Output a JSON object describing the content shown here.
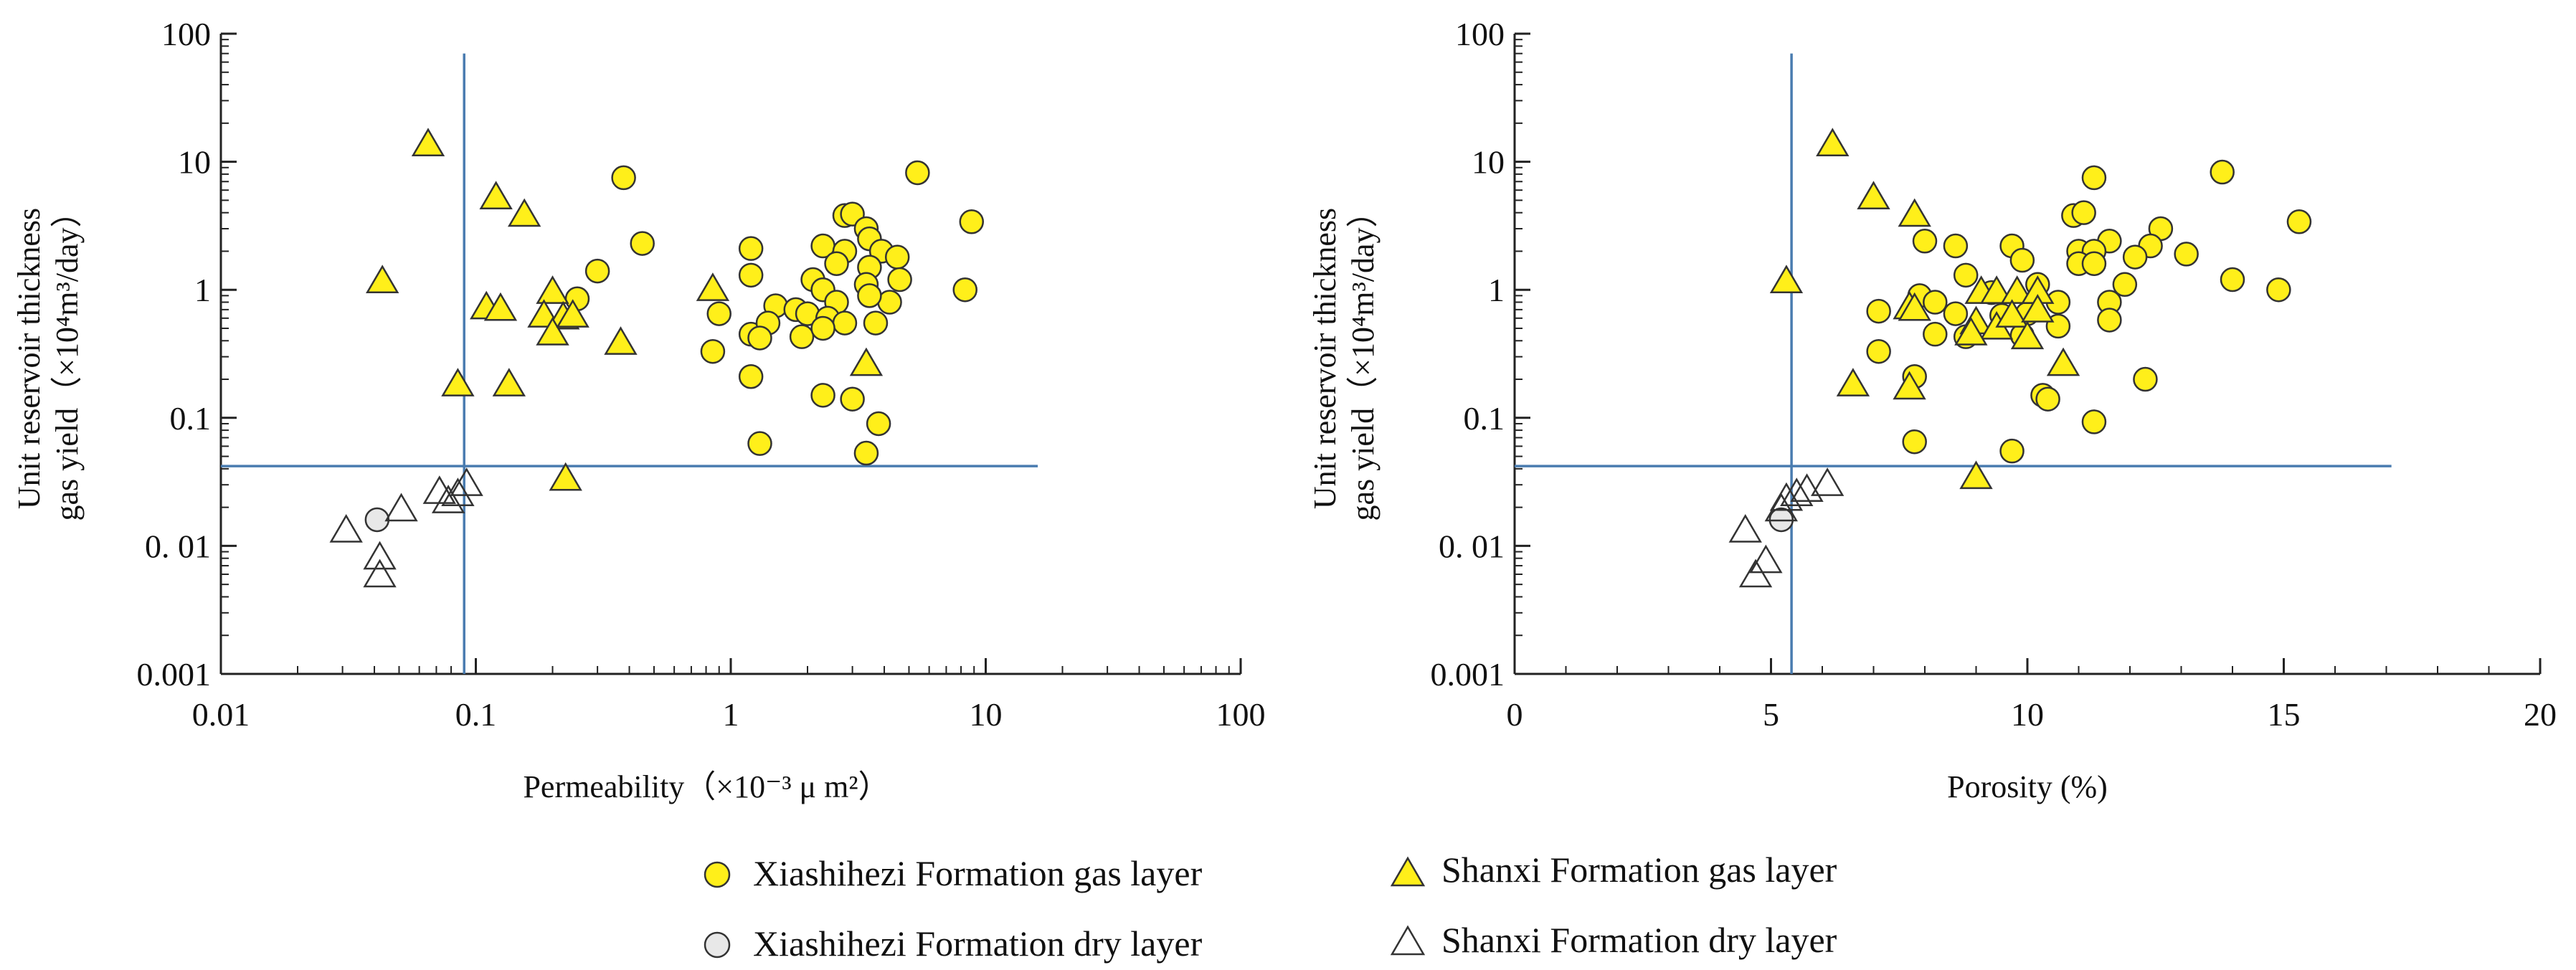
{
  "colors": {
    "gas_fill": "#FFEF1A",
    "dry_fill": "#E8E8E8",
    "marker_stroke": "#333333",
    "cutoff_line": "#4A7CB0",
    "axis": "#222222"
  },
  "legend": {
    "xsz_gas": "Xiashihezi Formation gas layer",
    "sx_gas": "Shanxi Formation gas layer",
    "xsz_dry": "Xiashihezi Formation dry layer",
    "sx_dry": "Shanxi Formation dry layer"
  },
  "chart_data": [
    {
      "type": "scatter",
      "id": "left",
      "xscale": "log",
      "yscale": "log",
      "xlim": [
        0.01,
        100
      ],
      "ylim": [
        0.001,
        100
      ],
      "xticks": [
        "0.01",
        "0.1",
        "1",
        "10",
        "100"
      ],
      "yticks": [
        "0.001",
        "0. 01",
        "0.1",
        "1",
        "10",
        "100"
      ],
      "xlabel": "Permeability（×10⁻³ μ m²）",
      "ylabel_line1": "Unit reservoir thickness",
      "ylabel_line2": "gas yield（×10⁴m³/day）",
      "cutoff_x": 0.09,
      "cutoff_y": 0.042,
      "cutoff_x_ymax": 70,
      "cutoff_y_xmax": 16,
      "series": [
        {
          "name": "Xiashihezi Formation gas layer",
          "marker": "circle",
          "fill": "gas",
          "points": [
            [
              0.38,
              7.5
            ],
            [
              0.45,
              2.3
            ],
            [
              0.3,
              1.4
            ],
            [
              0.25,
              0.85
            ],
            [
              5.4,
              8.2
            ],
            [
              8.8,
              3.4
            ],
            [
              8.3,
              1.0
            ],
            [
              2.8,
              3.8
            ],
            [
              3.0,
              3.9
            ],
            [
              3.4,
              3.0
            ],
            [
              3.5,
              2.5
            ],
            [
              2.3,
              2.2
            ],
            [
              2.8,
              2.0
            ],
            [
              3.9,
              2.0
            ],
            [
              4.5,
              1.8
            ],
            [
              2.6,
              1.6
            ],
            [
              3.5,
              1.5
            ],
            [
              2.1,
              1.2
            ],
            [
              4.6,
              1.2
            ],
            [
              3.4,
              1.1
            ],
            [
              2.3,
              1.0
            ],
            [
              2.6,
              0.8
            ],
            [
              4.2,
              0.8
            ],
            [
              3.5,
              0.9
            ],
            [
              1.5,
              0.75
            ],
            [
              1.8,
              0.7
            ],
            [
              2.0,
              0.65
            ],
            [
              2.4,
              0.6
            ],
            [
              2.8,
              0.55
            ],
            [
              3.7,
              0.55
            ],
            [
              1.2,
              2.1
            ],
            [
              1.2,
              1.3
            ],
            [
              1.2,
              0.45
            ],
            [
              0.9,
              0.65
            ],
            [
              1.4,
              0.55
            ],
            [
              1.9,
              0.43
            ],
            [
              2.3,
              0.5
            ],
            [
              1.3,
              0.42
            ],
            [
              0.85,
              0.33
            ],
            [
              1.2,
              0.21
            ],
            [
              2.3,
              0.15
            ],
            [
              3.0,
              0.14
            ],
            [
              3.8,
              0.09
            ],
            [
              1.3,
              0.063
            ],
            [
              3.4,
              0.053
            ]
          ]
        },
        {
          "name": "Shanxi Formation gas layer",
          "marker": "triangle",
          "fill": "gas",
          "points": [
            [
              0.065,
              13.5
            ],
            [
              0.043,
              1.15
            ],
            [
              0.12,
              5.2
            ],
            [
              0.155,
              3.8
            ],
            [
              0.11,
              0.72
            ],
            [
              0.125,
              0.7
            ],
            [
              0.2,
              0.95
            ],
            [
              0.185,
              0.62
            ],
            [
              0.22,
              0.6
            ],
            [
              0.2,
              0.45
            ],
            [
              0.24,
              0.62
            ],
            [
              0.37,
              0.38
            ],
            [
              0.085,
              0.18
            ],
            [
              0.135,
              0.18
            ],
            [
              0.225,
              0.033
            ],
            [
              0.85,
              1.0
            ],
            [
              3.4,
              0.26
            ]
          ]
        },
        {
          "name": "Xiashihezi Formation dry layer",
          "marker": "circle",
          "fill": "dry",
          "points": [
            [
              0.041,
              0.016
            ]
          ]
        },
        {
          "name": "Shanxi Formation dry layer",
          "marker": "triangle",
          "fill": "dry",
          "points": [
            [
              0.031,
              0.013
            ],
            [
              0.051,
              0.019
            ],
            [
              0.042,
              0.008
            ],
            [
              0.042,
              0.0058
            ],
            [
              0.072,
              0.026
            ],
            [
              0.078,
              0.022
            ],
            [
              0.085,
              0.025
            ],
            [
              0.092,
              0.03
            ]
          ]
        }
      ]
    },
    {
      "type": "scatter",
      "id": "right",
      "xscale": "linear",
      "yscale": "log",
      "xlim": [
        0,
        20
      ],
      "ylim": [
        0.001,
        100
      ],
      "xticks": [
        "0",
        "5",
        "10",
        "15",
        "20"
      ],
      "yticks": [
        "0.001",
        "0. 01",
        "0.1",
        "1",
        "10",
        "100"
      ],
      "xlabel": "Porosity (%)",
      "ylabel_line1": "Unit reservoir thickness",
      "ylabel_line2": "gas yield（×10⁴m³/day）",
      "cutoff_x": 5.4,
      "cutoff_y": 0.042,
      "cutoff_x_ymax": 70,
      "cutoff_y_xmax": 17.1,
      "series": [
        {
          "name": "Xiashihezi Formation gas layer",
          "marker": "circle",
          "fill": "gas",
          "points": [
            [
              11.3,
              7.5
            ],
            [
              13.8,
              8.3
            ],
            [
              15.3,
              3.4
            ],
            [
              14.9,
              1.0
            ],
            [
              13.1,
              1.9
            ],
            [
              14.0,
              1.2
            ],
            [
              10.9,
              3.8
            ],
            [
              11.1,
              4.0
            ],
            [
              12.6,
              3.0
            ],
            [
              11.6,
              2.4
            ],
            [
              9.7,
              2.2
            ],
            [
              11.0,
              2.0
            ],
            [
              11.3,
              2.0
            ],
            [
              12.4,
              2.2
            ],
            [
              12.1,
              1.8
            ],
            [
              9.9,
              1.7
            ],
            [
              11.0,
              1.6
            ],
            [
              11.3,
              1.6
            ],
            [
              11.9,
              1.1
            ],
            [
              11.6,
              0.8
            ],
            [
              8.0,
              2.4
            ],
            [
              8.6,
              2.2
            ],
            [
              8.8,
              1.3
            ],
            [
              9.3,
              0.95
            ],
            [
              10.2,
              1.1
            ],
            [
              10.6,
              0.8
            ],
            [
              7.1,
              0.68
            ],
            [
              7.9,
              0.9
            ],
            [
              8.2,
              0.8
            ],
            [
              8.6,
              0.65
            ],
            [
              9.5,
              0.63
            ],
            [
              10.0,
              0.65
            ],
            [
              10.6,
              0.52
            ],
            [
              11.6,
              0.58
            ],
            [
              8.2,
              0.45
            ],
            [
              8.8,
              0.43
            ],
            [
              9.9,
              0.44
            ],
            [
              7.1,
              0.33
            ],
            [
              7.8,
              0.21
            ],
            [
              10.3,
              0.15
            ],
            [
              10.4,
              0.14
            ],
            [
              12.3,
              0.2
            ],
            [
              11.3,
              0.093
            ],
            [
              7.8,
              0.065
            ],
            [
              9.7,
              0.055
            ]
          ]
        },
        {
          "name": "Shanxi Formation gas layer",
          "marker": "triangle",
          "fill": "gas",
          "points": [
            [
              6.2,
              13.5
            ],
            [
              5.3,
              1.15
            ],
            [
              7.0,
              5.2
            ],
            [
              7.8,
              3.8
            ],
            [
              7.7,
              0.72
            ],
            [
              7.8,
              0.7
            ],
            [
              9.1,
              0.95
            ],
            [
              9.4,
              0.95
            ],
            [
              9.8,
              0.95
            ],
            [
              10.2,
              0.95
            ],
            [
              9.0,
              0.55
            ],
            [
              9.4,
              0.5
            ],
            [
              9.7,
              0.62
            ],
            [
              10.0,
              0.42
            ],
            [
              10.2,
              0.68
            ],
            [
              8.9,
              0.45
            ],
            [
              7.7,
              0.17
            ],
            [
              6.6,
              0.18
            ],
            [
              10.7,
              0.26
            ],
            [
              9.0,
              0.034
            ]
          ]
        },
        {
          "name": "Xiashihezi Formation dry layer",
          "marker": "circle",
          "fill": "dry",
          "points": [
            [
              5.2,
              0.016
            ]
          ]
        },
        {
          "name": "Shanxi Formation dry layer",
          "marker": "triangle",
          "fill": "dry",
          "points": [
            [
              4.5,
              0.013
            ],
            [
              4.9,
              0.0075
            ],
            [
              4.7,
              0.0058
            ],
            [
              5.2,
              0.019
            ],
            [
              5.3,
              0.023
            ],
            [
              5.5,
              0.025
            ],
            [
              5.7,
              0.027
            ],
            [
              6.1,
              0.03
            ]
          ]
        }
      ]
    }
  ]
}
